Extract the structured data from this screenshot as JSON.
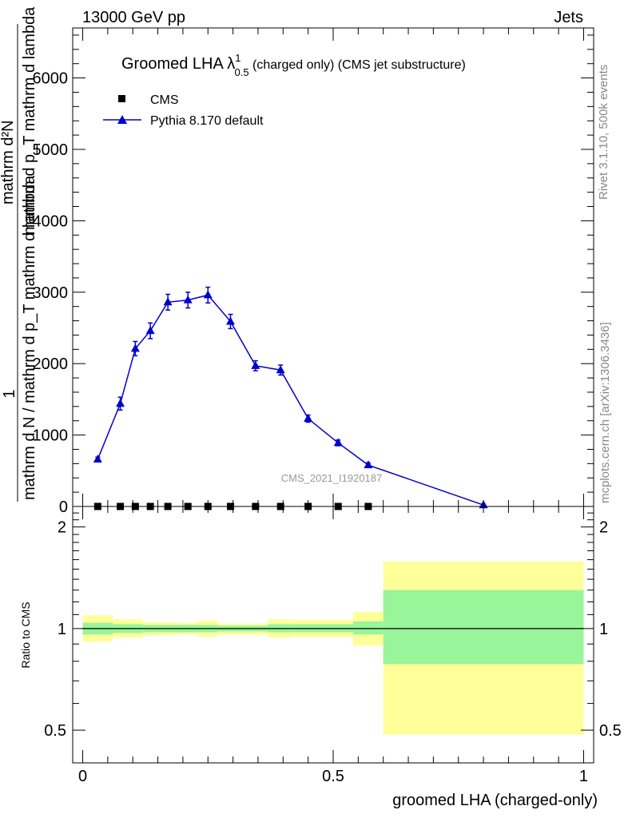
{
  "header": {
    "left": "13000 GeV pp",
    "right": "Jets"
  },
  "title": {
    "main": "Groomed LHA λ",
    "sup": "1",
    "sub": "0.5",
    "rest": " (charged only) (CMS jet substructure)"
  },
  "side_labels": {
    "rivet": "Rivet 3.1.10,  500k events",
    "mcplots": "mcplots.cern.ch [arXiv:1306.3436]"
  },
  "analysis_id": "CMS_2021_I1920187",
  "legend": {
    "cms": "CMS",
    "mc": "Pythia 8.170 default"
  },
  "ylabel_main": {
    "one": "1",
    "num": "mathrm d²N",
    "den_top": "mathrm d p_T mathrm d lambda",
    "den_bottom": "mathrm d N / mathrm d p_T mathrm d lambda"
  },
  "ylabel_ratio": "Ratio to CMS",
  "xlabel": "groomed LHA (charged-only)",
  "colors": {
    "mc": "#0000cc",
    "band_inner": "#99f599",
    "band_outer": "#ffff99",
    "data": "#000000"
  },
  "chart_data": {
    "type": "line",
    "main_panel": {
      "xlim": [
        -0.02,
        1.02
      ],
      "ylim": [
        0,
        6700
      ],
      "yticks": [
        0,
        1000,
        2000,
        3000,
        4000,
        5000,
        6000
      ],
      "ytick_labels": [
        "0",
        "1000",
        "2000",
        "3000",
        "4000",
        "5000",
        "6000"
      ],
      "series": [
        {
          "name": "CMS",
          "marker": "square",
          "x": [
            0.03,
            0.075,
            0.105,
            0.135,
            0.17,
            0.21,
            0.25,
            0.295,
            0.345,
            0.395,
            0.45,
            0.51,
            0.57
          ],
          "y": [
            0,
            0,
            0,
            0,
            0,
            0,
            0,
            0,
            0,
            0,
            0,
            0,
            0
          ]
        },
        {
          "name": "Pythia 8.170 default",
          "marker": "triangle",
          "x": [
            0.03,
            0.075,
            0.105,
            0.135,
            0.17,
            0.21,
            0.25,
            0.295,
            0.345,
            0.395,
            0.45,
            0.51,
            0.57,
            0.8
          ],
          "y": [
            660,
            1440,
            2210,
            2460,
            2860,
            2890,
            2960,
            2590,
            1970,
            1910,
            1230,
            890,
            580,
            20
          ],
          "err": [
            30,
            90,
            100,
            110,
            110,
            110,
            110,
            100,
            70,
            70,
            50,
            40,
            30,
            10
          ]
        }
      ]
    },
    "ratio_panel": {
      "ylim": [
        0.4,
        2.3
      ],
      "yticks": [
        0.5,
        1,
        2
      ],
      "ytick_labels": [
        "0.5",
        "1",
        "2"
      ],
      "xticks": [
        0,
        0.5,
        1
      ],
      "xtick_labels": [
        "0",
        "0.5",
        "1"
      ],
      "bands": [
        {
          "x0": 0.0,
          "x1": 0.06,
          "inner": [
            0.96,
            1.04
          ],
          "outer": [
            0.915,
            1.095
          ]
        },
        {
          "x0": 0.06,
          "x1": 0.09,
          "inner": [
            0.97,
            1.03
          ],
          "outer": [
            0.94,
            1.065
          ]
        },
        {
          "x0": 0.09,
          "x1": 0.12,
          "inner": [
            0.97,
            1.03
          ],
          "outer": [
            0.94,
            1.065
          ]
        },
        {
          "x0": 0.12,
          "x1": 0.15,
          "inner": [
            0.975,
            1.025
          ],
          "outer": [
            0.955,
            1.045
          ]
        },
        {
          "x0": 0.15,
          "x1": 0.19,
          "inner": [
            0.975,
            1.025
          ],
          "outer": [
            0.955,
            1.045
          ]
        },
        {
          "x0": 0.19,
          "x1": 0.23,
          "inner": [
            0.975,
            1.025
          ],
          "outer": [
            0.96,
            1.04
          ]
        },
        {
          "x0": 0.23,
          "x1": 0.27,
          "inner": [
            0.975,
            1.025
          ],
          "outer": [
            0.945,
            1.055
          ]
        },
        {
          "x0": 0.27,
          "x1": 0.32,
          "inner": [
            0.98,
            1.02
          ],
          "outer": [
            0.96,
            1.035
          ]
        },
        {
          "x0": 0.32,
          "x1": 0.37,
          "inner": [
            0.98,
            1.02
          ],
          "outer": [
            0.96,
            1.035
          ]
        },
        {
          "x0": 0.37,
          "x1": 0.42,
          "inner": [
            0.975,
            1.03
          ],
          "outer": [
            0.94,
            1.065
          ]
        },
        {
          "x0": 0.42,
          "x1": 0.48,
          "inner": [
            0.975,
            1.03
          ],
          "outer": [
            0.945,
            1.06
          ]
        },
        {
          "x0": 0.48,
          "x1": 0.54,
          "inner": [
            0.975,
            1.03
          ],
          "outer": [
            0.945,
            1.06
          ]
        },
        {
          "x0": 0.54,
          "x1": 0.6,
          "inner": [
            0.96,
            1.05
          ],
          "outer": [
            0.89,
            1.12
          ]
        },
        {
          "x0": 0.6,
          "x1": 1.0,
          "inner": [
            0.785,
            1.3
          ],
          "outer": [
            0.485,
            1.58
          ]
        }
      ]
    }
  }
}
